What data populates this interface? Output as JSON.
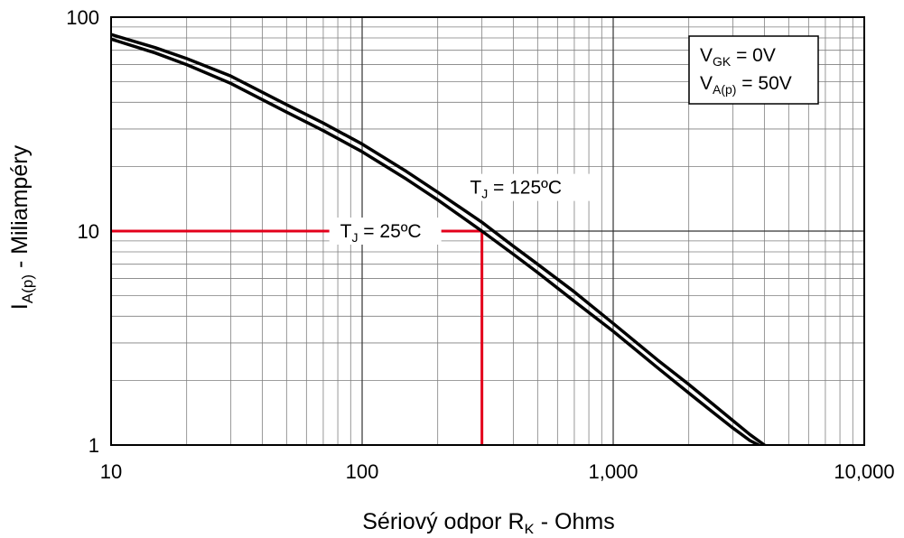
{
  "chart_data": {
    "type": "line",
    "xlabel": "Sériový odpor ",
    "xlabel_symbol": "R",
    "xlabel_sub": "K",
    "xlabel_units": " - Ohms",
    "ylabel_symbol": "I",
    "ylabel_sub": "A(p)",
    "ylabel_rest": " - Miliampéry",
    "x_scale": "log",
    "y_scale": "log",
    "xlim": [
      10,
      10000
    ],
    "ylim": [
      1,
      100
    ],
    "grid": true,
    "x_ticks": [
      {
        "value": 10,
        "label": "10"
      },
      {
        "value": 100,
        "label": "100"
      },
      {
        "value": 1000,
        "label": "1,000"
      },
      {
        "value": 10000,
        "label": "10,000"
      }
    ],
    "y_ticks": [
      {
        "value": 1,
        "label": "1"
      },
      {
        "value": 10,
        "label": "10"
      },
      {
        "value": 100,
        "label": "100"
      }
    ],
    "series": [
      {
        "x": [
          10,
          15,
          20,
          30,
          50,
          70,
          100,
          150,
          200,
          300,
          400,
          500,
          700,
          1000,
          1500,
          2000,
          2500,
          3000,
          3500,
          3800
        ],
        "y": [
          79,
          68,
          60,
          49,
          36,
          29.5,
          23.5,
          17.5,
          14,
          10,
          7.8,
          6.4,
          4.7,
          3.4,
          2.3,
          1.75,
          1.42,
          1.2,
          1.05,
          1.0
        ]
      },
      {
        "x": [
          10,
          15,
          20,
          30,
          50,
          70,
          100,
          150,
          200,
          300,
          400,
          500,
          700,
          1000,
          1500,
          2000,
          2500,
          3000,
          3500,
          4000,
          4100
        ],
        "y": [
          83,
          72,
          64,
          53,
          39,
          32,
          25.5,
          19,
          15.2,
          11,
          8.5,
          7,
          5.2,
          3.7,
          2.5,
          1.92,
          1.55,
          1.3,
          1.12,
          1.0,
          0.98
        ]
      }
    ],
    "annotations": [
      {
        "symbol": "T",
        "sub": "J",
        "text": " = 125ºC",
        "x": 400,
        "y": 16
      },
      {
        "symbol": "T",
        "sub": "J",
        "text": " = 25ºC",
        "x": 300,
        "y": 10
      }
    ],
    "reference_lines": {
      "x": 300,
      "y": 10,
      "color": "#e3001b"
    },
    "conditions": [
      {
        "symbol": "V",
        "sub": "GK",
        "text": " = 0V"
      },
      {
        "symbol": "V",
        "sub": "A(p)",
        "text": " = 50V"
      }
    ],
    "colors": {
      "curve": "#000000",
      "grid": "#7f7f7f",
      "reference": "#e3001b",
      "background": "#ffffff"
    }
  }
}
